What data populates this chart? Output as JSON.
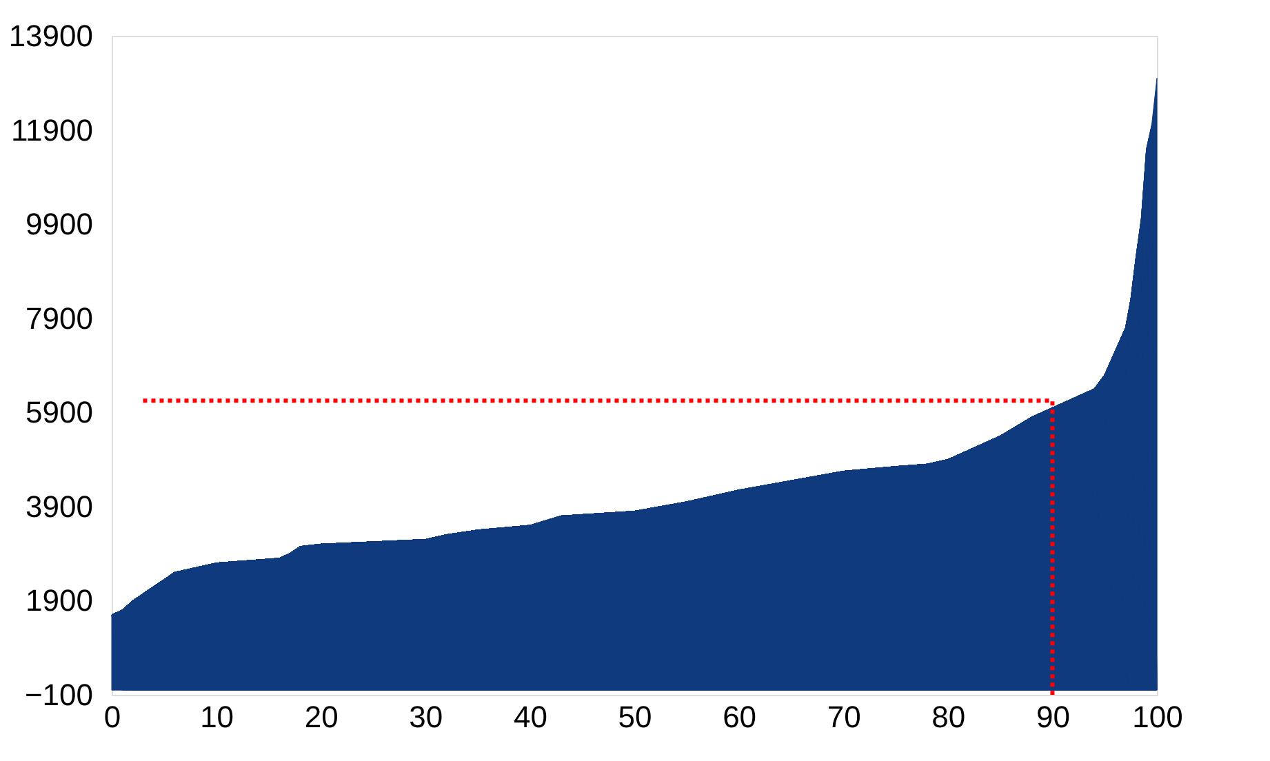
{
  "chart_data": {
    "type": "area",
    "xlim": [
      0,
      100
    ],
    "xticks": [
      0,
      10,
      20,
      30,
      40,
      50,
      60,
      70,
      80,
      90,
      100
    ],
    "ylim": [
      -100,
      13900
    ],
    "yticks": [
      -100,
      1900,
      3900,
      5900,
      7900,
      9900,
      11900,
      13900
    ],
    "grid": false,
    "series": [
      {
        "color": "#0f3a7d",
        "x": [
          0,
          1,
          2,
          4,
          6,
          8,
          10,
          13,
          16,
          17,
          18,
          20,
          30,
          32,
          35,
          40,
          43,
          50,
          55,
          60,
          65,
          70,
          75,
          78,
          80,
          82,
          85,
          88,
          90,
          92,
          94,
          95,
          96,
          97,
          97.5,
          98,
          98.5,
          99,
          99.5,
          100
        ],
        "values": [
          1600,
          1700,
          1900,
          2200,
          2500,
          2600,
          2700,
          2750,
          2800,
          2900,
          3050,
          3100,
          3200,
          3300,
          3400,
          3500,
          3700,
          3800,
          4000,
          4250,
          4450,
          4650,
          4750,
          4800,
          4900,
          5100,
          5400,
          5800,
          6000,
          6200,
          6400,
          6700,
          7200,
          7700,
          8300,
          9200,
          10000,
          11500,
          12000,
          13000
        ]
      },
      {
        "type": "line",
        "color": "#ff0000",
        "line_style": "dotted",
        "x": [
          3,
          90,
          90
        ],
        "values": [
          6150,
          6150,
          -100
        ]
      }
    ]
  }
}
